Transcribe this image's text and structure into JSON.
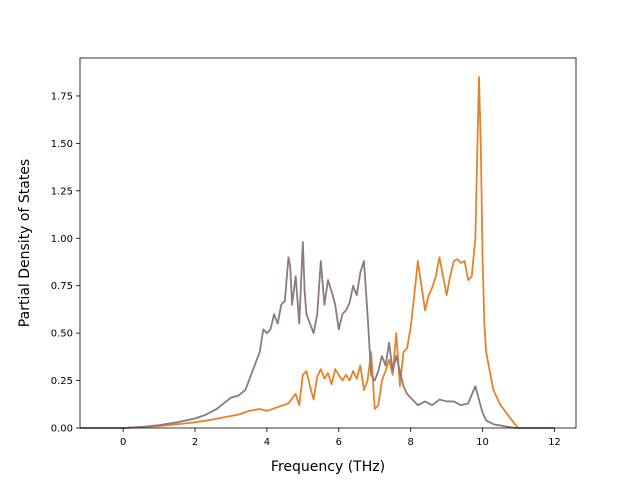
{
  "chart_data": {
    "type": "line",
    "xlabel": "Frequency (THz)",
    "ylabel": "Partial Density of States",
    "xlim": [
      -1.2,
      12.6
    ],
    "ylim": [
      0,
      1.95
    ],
    "xticks": [
      0,
      2,
      4,
      6,
      8,
      10,
      12
    ],
    "yticks": [
      0.0,
      0.25,
      0.5,
      0.75,
      1.0,
      1.25,
      1.5,
      1.75
    ],
    "ytick_labels": [
      "0.00",
      "0.25",
      "0.50",
      "0.75",
      "1.00",
      "1.25",
      "1.50",
      "1.75"
    ],
    "grid": false,
    "legend": "none",
    "series": [
      {
        "color": "#e6822a",
        "x": [
          -1.2,
          0.0,
          0.5,
          1.0,
          1.5,
          2.0,
          2.5,
          2.9,
          3.2,
          3.5,
          3.8,
          4.0,
          4.3,
          4.6,
          4.8,
          4.9,
          5.0,
          5.1,
          5.2,
          5.3,
          5.4,
          5.5,
          5.6,
          5.7,
          5.8,
          5.9,
          6.0,
          6.1,
          6.2,
          6.3,
          6.4,
          6.5,
          6.6,
          6.7,
          6.8,
          6.9,
          7.0,
          7.1,
          7.2,
          7.3,
          7.4,
          7.5,
          7.6,
          7.7,
          7.8,
          7.9,
          8.0,
          8.1,
          8.2,
          8.3,
          8.4,
          8.5,
          8.6,
          8.7,
          8.8,
          8.9,
          9.0,
          9.1,
          9.2,
          9.3,
          9.4,
          9.5,
          9.6,
          9.7,
          9.8,
          9.9,
          9.95,
          10.0,
          10.05,
          10.1,
          10.2,
          10.3,
          10.5,
          10.7,
          10.9,
          11.0,
          12.0
        ],
        "y": [
          0.0,
          0.0,
          0.005,
          0.01,
          0.02,
          0.03,
          0.045,
          0.06,
          0.07,
          0.09,
          0.1,
          0.09,
          0.11,
          0.13,
          0.18,
          0.12,
          0.28,
          0.3,
          0.22,
          0.15,
          0.27,
          0.31,
          0.26,
          0.29,
          0.23,
          0.31,
          0.28,
          0.25,
          0.28,
          0.25,
          0.3,
          0.26,
          0.33,
          0.2,
          0.25,
          0.4,
          0.1,
          0.12,
          0.25,
          0.3,
          0.36,
          0.28,
          0.5,
          0.22,
          0.4,
          0.42,
          0.53,
          0.7,
          0.88,
          0.75,
          0.62,
          0.7,
          0.74,
          0.8,
          0.9,
          0.8,
          0.7,
          0.8,
          0.88,
          0.89,
          0.87,
          0.88,
          0.78,
          0.8,
          1.0,
          1.85,
          1.5,
          0.9,
          0.55,
          0.4,
          0.3,
          0.2,
          0.12,
          0.07,
          0.02,
          0.0,
          0.0
        ]
      },
      {
        "color": "#8c7a80",
        "x": [
          -1.2,
          0.0,
          0.5,
          1.0,
          1.5,
          2.0,
          2.3,
          2.6,
          2.8,
          3.0,
          3.2,
          3.4,
          3.6,
          3.8,
          3.9,
          4.0,
          4.1,
          4.2,
          4.3,
          4.4,
          4.5,
          4.6,
          4.65,
          4.7,
          4.8,
          4.9,
          5.0,
          5.05,
          5.1,
          5.2,
          5.3,
          5.4,
          5.5,
          5.6,
          5.7,
          5.8,
          5.9,
          6.0,
          6.1,
          6.2,
          6.3,
          6.4,
          6.5,
          6.6,
          6.7,
          6.8,
          6.9,
          7.0,
          7.1,
          7.2,
          7.3,
          7.4,
          7.5,
          7.6,
          7.7,
          7.8,
          7.9,
          8.0,
          8.2,
          8.4,
          8.6,
          8.8,
          9.0,
          9.2,
          9.4,
          9.6,
          9.8,
          9.9,
          10.0,
          10.1,
          10.3,
          10.6,
          10.9,
          12.0
        ],
        "y": [
          0.0,
          0.0,
          0.005,
          0.015,
          0.03,
          0.05,
          0.07,
          0.1,
          0.13,
          0.16,
          0.17,
          0.2,
          0.3,
          0.4,
          0.52,
          0.5,
          0.52,
          0.6,
          0.55,
          0.65,
          0.67,
          0.9,
          0.85,
          0.65,
          0.8,
          0.55,
          0.98,
          0.72,
          0.6,
          0.55,
          0.5,
          0.6,
          0.88,
          0.65,
          0.78,
          0.72,
          0.65,
          0.52,
          0.6,
          0.62,
          0.66,
          0.75,
          0.7,
          0.82,
          0.88,
          0.6,
          0.28,
          0.25,
          0.3,
          0.38,
          0.33,
          0.45,
          0.3,
          0.38,
          0.3,
          0.22,
          0.18,
          0.16,
          0.12,
          0.14,
          0.12,
          0.15,
          0.14,
          0.14,
          0.12,
          0.13,
          0.22,
          0.15,
          0.08,
          0.04,
          0.02,
          0.01,
          0.0,
          0.0
        ]
      }
    ]
  }
}
